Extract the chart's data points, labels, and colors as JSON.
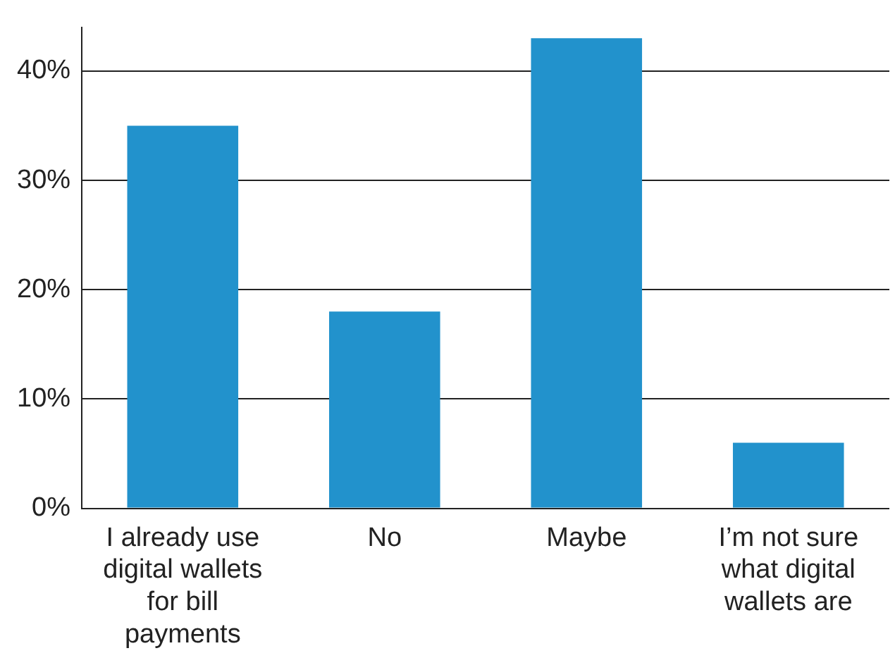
{
  "chart_data": {
    "type": "bar",
    "categories": [
      "I already use digital wallets for bill payments",
      "No",
      "Maybe",
      "I’m not sure what digital wallets are"
    ],
    "values": [
      35,
      18,
      43,
      6
    ],
    "color": "#2292cc",
    "ylim": [
      0,
      44
    ],
    "yticks": [
      {
        "value": 0,
        "label": "0%"
      },
      {
        "value": 10,
        "label": "10%"
      },
      {
        "value": 20,
        "label": "20%"
      },
      {
        "value": 30,
        "label": "30%"
      },
      {
        "value": 40,
        "label": "40%"
      }
    ],
    "grid": "y",
    "legend": false
  }
}
